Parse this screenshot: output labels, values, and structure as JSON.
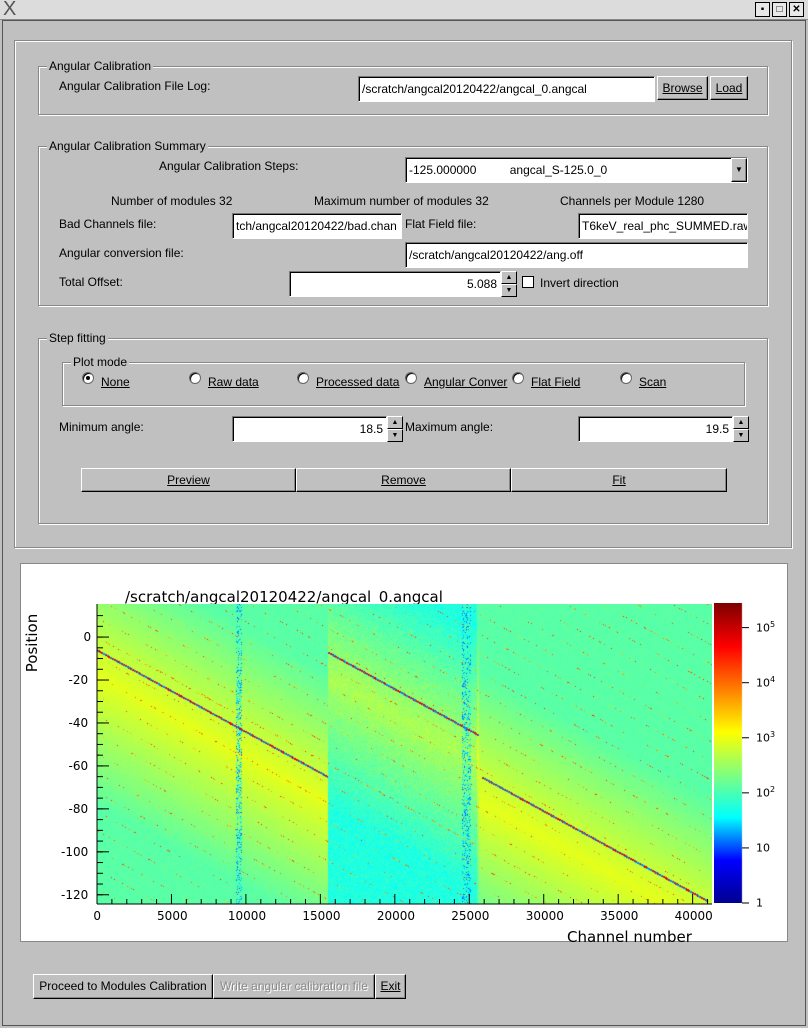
{
  "window": {
    "logo": "X",
    "controls": [
      "minimize-icon",
      "maximize-icon",
      "close-icon"
    ]
  },
  "angular_calibration": {
    "group_label": "Angular Calibration",
    "file_log_label": "Angular Calibration File Log:",
    "file_log_value": "/scratch/angcal20120422/angcal_0.angcal",
    "browse_label": "Browse",
    "load_label": "Load"
  },
  "summary": {
    "group_label": "Angular Calibration Summary",
    "steps_label": "Angular Calibration Steps:",
    "steps_value_angle": "-125.000000",
    "steps_value_name": "angcal_S-125.0_0",
    "num_modules": "Number of modules 32",
    "max_modules": "Maximum number of modules 32",
    "channels_per_module": "Channels per Module 1280",
    "bad_channels_label": "Bad Channels file:",
    "bad_channels_value": "tch/angcal20120422/bad.chan",
    "flat_field_label": "Flat Field file:",
    "flat_field_value": "T6keV_real_phc_SUMMED.raw",
    "ang_conv_label": "Angular conversion file:",
    "ang_conv_value": "/scratch/angcal20120422/ang.off",
    "total_offset_label": "Total Offset:",
    "total_offset_value": "5.088",
    "invert_label": "Invert direction",
    "invert_checked": false
  },
  "step_fitting": {
    "group_label": "Step fitting",
    "plot_mode_label": "Plot mode",
    "plot_modes": [
      {
        "label": "None",
        "selected": true
      },
      {
        "label": "Raw data",
        "selected": false
      },
      {
        "label": "Processed data",
        "selected": false
      },
      {
        "label": "Angular Conver",
        "selected": false
      },
      {
        "label": "Flat Field",
        "selected": false
      },
      {
        "label": "Scan",
        "selected": false
      }
    ],
    "min_angle_label": "Minimum angle:",
    "min_angle_value": "18.5",
    "max_angle_label": "Maximum angle:",
    "max_angle_value": "19.5",
    "preview_label": "Preview",
    "remove_label": "Remove",
    "fit_label": "Fit"
  },
  "chart_data": {
    "type": "heatmap",
    "title": "/scratch/angcal20120422/angcal_0.angcal",
    "xlabel": "Channel number",
    "ylabel": "Position",
    "xlim": [
      0,
      41300
    ],
    "ylim": [
      -124.3,
      15.4
    ],
    "xticks": [
      "0",
      "5000",
      "10000",
      "15000",
      "20000",
      "25000",
      "30000",
      "35000",
      "40000"
    ],
    "yticks": [
      "0",
      "-20",
      "-40",
      "-60",
      "-80",
      "-100",
      "-120"
    ],
    "zscale": "log",
    "zlim": [
      1,
      280000
    ],
    "zticks": [
      {
        "base": "1",
        "exp": ""
      },
      {
        "base": "10",
        "exp": ""
      },
      {
        "base": "10",
        "exp": "2"
      },
      {
        "base": "10",
        "exp": "3"
      },
      {
        "base": "10",
        "exp": "4"
      },
      {
        "base": "10",
        "exp": "5"
      }
    ],
    "colormap": [
      "#00008f",
      "#0000ff",
      "#00ffff",
      "#80ff80",
      "#ffff00",
      "#ff8000",
      "#ff0000",
      "#800000"
    ],
    "peak_line_segments": [
      {
        "channel_range": [
          0,
          15500
        ],
        "position_range": [
          -6,
          -65
        ]
      },
      {
        "channel_range": [
          15500,
          25600
        ],
        "position_range": [
          -7,
          -45.5
        ]
      },
      {
        "channel_range": [
          25800,
          41000
        ],
        "position_range": [
          -65,
          -122.8
        ]
      }
    ],
    "grid": false
  },
  "bottom": {
    "proceed_label": "Proceed to Modules Calibration",
    "write_label": "Write angular calibration file",
    "exit_label": "Exit"
  }
}
